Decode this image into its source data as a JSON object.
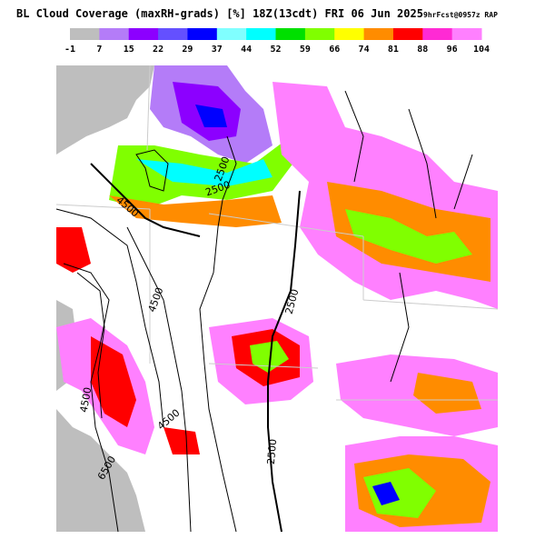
{
  "header": {
    "title": "BL Cloud Coverage (maxRH-grads) [%] 18Z(13cdt) FRI 06 Jun 2025",
    "forecast": "9hrFcst@0957z RAP"
  },
  "legend": {
    "colors": [
      "#bebebe",
      "#b47cf8",
      "#8c00ff",
      "#6450ff",
      "#0000ff",
      "#80ffff",
      "#00ffff",
      "#00e000",
      "#80ff00",
      "#ffff00",
      "#ff8c00",
      "#ff0000",
      "#ff2ad4",
      "#ff80ff"
    ],
    "ticks": [
      -1,
      7,
      15,
      22,
      29,
      37,
      44,
      52,
      59,
      66,
      74,
      81,
      88,
      96,
      104
    ]
  },
  "contour_labels": [
    "2500",
    "2500",
    "4500",
    "4500",
    "2500",
    "4500",
    "4500",
    "2500",
    "6500"
  ]
}
